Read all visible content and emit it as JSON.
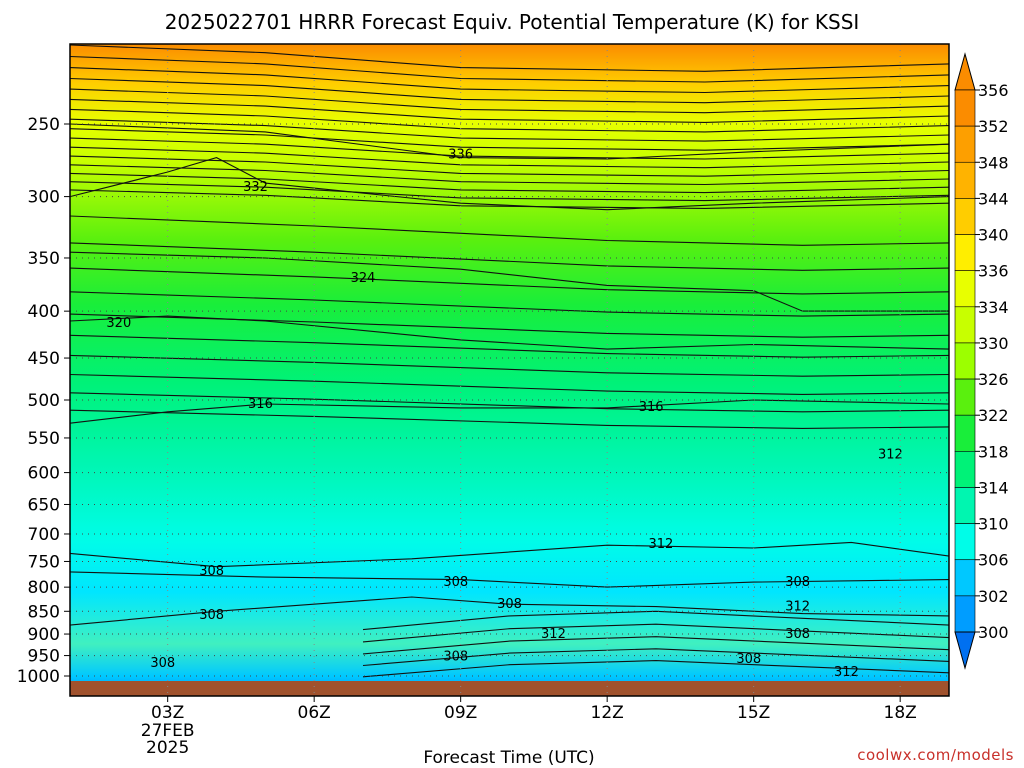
{
  "chart_data": {
    "type": "heatmap",
    "title": "2025022701 HRRR Forecast Equiv. Potential Temperature (K) for KSSI",
    "xlabel": "Forecast Time (UTC)",
    "ylabel": "",
    "x_ticks": [
      {
        "label": "03Z",
        "hours": 3,
        "sub": [
          "27FEB",
          "2025"
        ]
      },
      {
        "label": "06Z",
        "hours": 6
      },
      {
        "label": "09Z",
        "hours": 9
      },
      {
        "label": "12Z",
        "hours": 12
      },
      {
        "label": "15Z",
        "hours": 15
      },
      {
        "label": "18Z",
        "hours": 18
      }
    ],
    "xlim": [
      1,
      19
    ],
    "y_ticks": [
      250,
      300,
      350,
      400,
      450,
      500,
      550,
      600,
      650,
      700,
      750,
      800,
      850,
      900,
      950,
      1000
    ],
    "ylim": [
      1018,
      200
    ],
    "y_scale": "log-pressure",
    "colorbar": {
      "labels": [
        356,
        352,
        348,
        344,
        340,
        336,
        334,
        330,
        326,
        322,
        318,
        314,
        310,
        306,
        302,
        300
      ],
      "colors": [
        "#fb8c00",
        "#fd9f00",
        "#ffb300",
        "#ffcd00",
        "#ffee00",
        "#e8ff00",
        "#c8ff00",
        "#9cff00",
        "#5af00e",
        "#19ee3a",
        "#00f278",
        "#00f6b0",
        "#00fde8",
        "#00c8ff",
        "#009dff",
        "#0070f0"
      ]
    },
    "contours": [
      {
        "value": 336,
        "points": [
          [
            1,
            250
          ],
          [
            5,
            255
          ],
          [
            9,
            272
          ],
          [
            12,
            273
          ],
          [
            15,
            268
          ],
          [
            19,
            263
          ]
        ]
      },
      {
        "value": 332,
        "points": [
          [
            1,
            300
          ],
          [
            3,
            282
          ],
          [
            4,
            272
          ],
          [
            5,
            290
          ],
          [
            9,
            305
          ],
          [
            12,
            310
          ],
          [
            15,
            305
          ],
          [
            19,
            300
          ]
        ]
      },
      {
        "value": 324,
        "points": [
          [
            1,
            345
          ],
          [
            5,
            350
          ],
          [
            9,
            360
          ],
          [
            12,
            375
          ],
          [
            15,
            380
          ],
          [
            16,
            400
          ],
          [
            19,
            400
          ]
        ]
      },
      {
        "value": 320,
        "points": [
          [
            1,
            410
          ],
          [
            3,
            405
          ],
          [
            5,
            410
          ],
          [
            9,
            430
          ],
          [
            12,
            440
          ],
          [
            15,
            435
          ],
          [
            19,
            440
          ]
        ]
      },
      {
        "value": 316,
        "points": [
          [
            1,
            530
          ],
          [
            3,
            515
          ],
          [
            5,
            505
          ],
          [
            9,
            510
          ],
          [
            12,
            510
          ],
          [
            15,
            500
          ],
          [
            19,
            505
          ]
        ]
      },
      {
        "value": 312,
        "points": [
          [
            1,
            735
          ],
          [
            4,
            760
          ],
          [
            8,
            745
          ],
          [
            12,
            720
          ],
          [
            15,
            725
          ],
          [
            17,
            715
          ],
          [
            19,
            740
          ]
        ]
      },
      {
        "value": 308,
        "points": [
          [
            1,
            770
          ],
          [
            5,
            780
          ],
          [
            9,
            785
          ],
          [
            12,
            800
          ],
          [
            15,
            790
          ],
          [
            19,
            785
          ]
        ]
      },
      {
        "value": 308,
        "points": [
          [
            1,
            880
          ],
          [
            4,
            850
          ],
          [
            8,
            820
          ],
          [
            10,
            835
          ],
          [
            13,
            840
          ],
          [
            16,
            855
          ],
          [
            19,
            860
          ]
        ]
      }
    ],
    "contour_labels": [
      {
        "text": "336",
        "hours": 9,
        "p": 270
      },
      {
        "text": "332",
        "hours": 4.8,
        "p": 293
      },
      {
        "text": "324",
        "hours": 7,
        "p": 368
      },
      {
        "text": "320",
        "hours": 2,
        "p": 412
      },
      {
        "text": "316",
        "hours": 4.9,
        "p": 505
      },
      {
        "text": "316",
        "hours": 12.9,
        "p": 509
      },
      {
        "text": "312",
        "hours": 17.8,
        "p": 573
      },
      {
        "text": "312",
        "hours": 13.1,
        "p": 718
      },
      {
        "text": "308",
        "hours": 3.9,
        "p": 768
      },
      {
        "text": "308",
        "hours": 8.9,
        "p": 790
      },
      {
        "text": "308",
        "hours": 15.9,
        "p": 790
      },
      {
        "text": "308",
        "hours": 3.9,
        "p": 858
      },
      {
        "text": "308",
        "hours": 10,
        "p": 835
      },
      {
        "text": "312",
        "hours": 15.9,
        "p": 840
      },
      {
        "text": "312",
        "hours": 10.9,
        "p": 900
      },
      {
        "text": "308",
        "hours": 15.9,
        "p": 900
      },
      {
        "text": "308",
        "hours": 8.9,
        "p": 952
      },
      {
        "text": "308",
        "hours": 14.9,
        "p": 958
      },
      {
        "text": "308",
        "hours": 2.9,
        "p": 968
      },
      {
        "text": "312",
        "hours": 16.9,
        "p": 990
      }
    ],
    "grid": true,
    "legend": "right colorbar"
  },
  "credit": "coolwx.com/models"
}
